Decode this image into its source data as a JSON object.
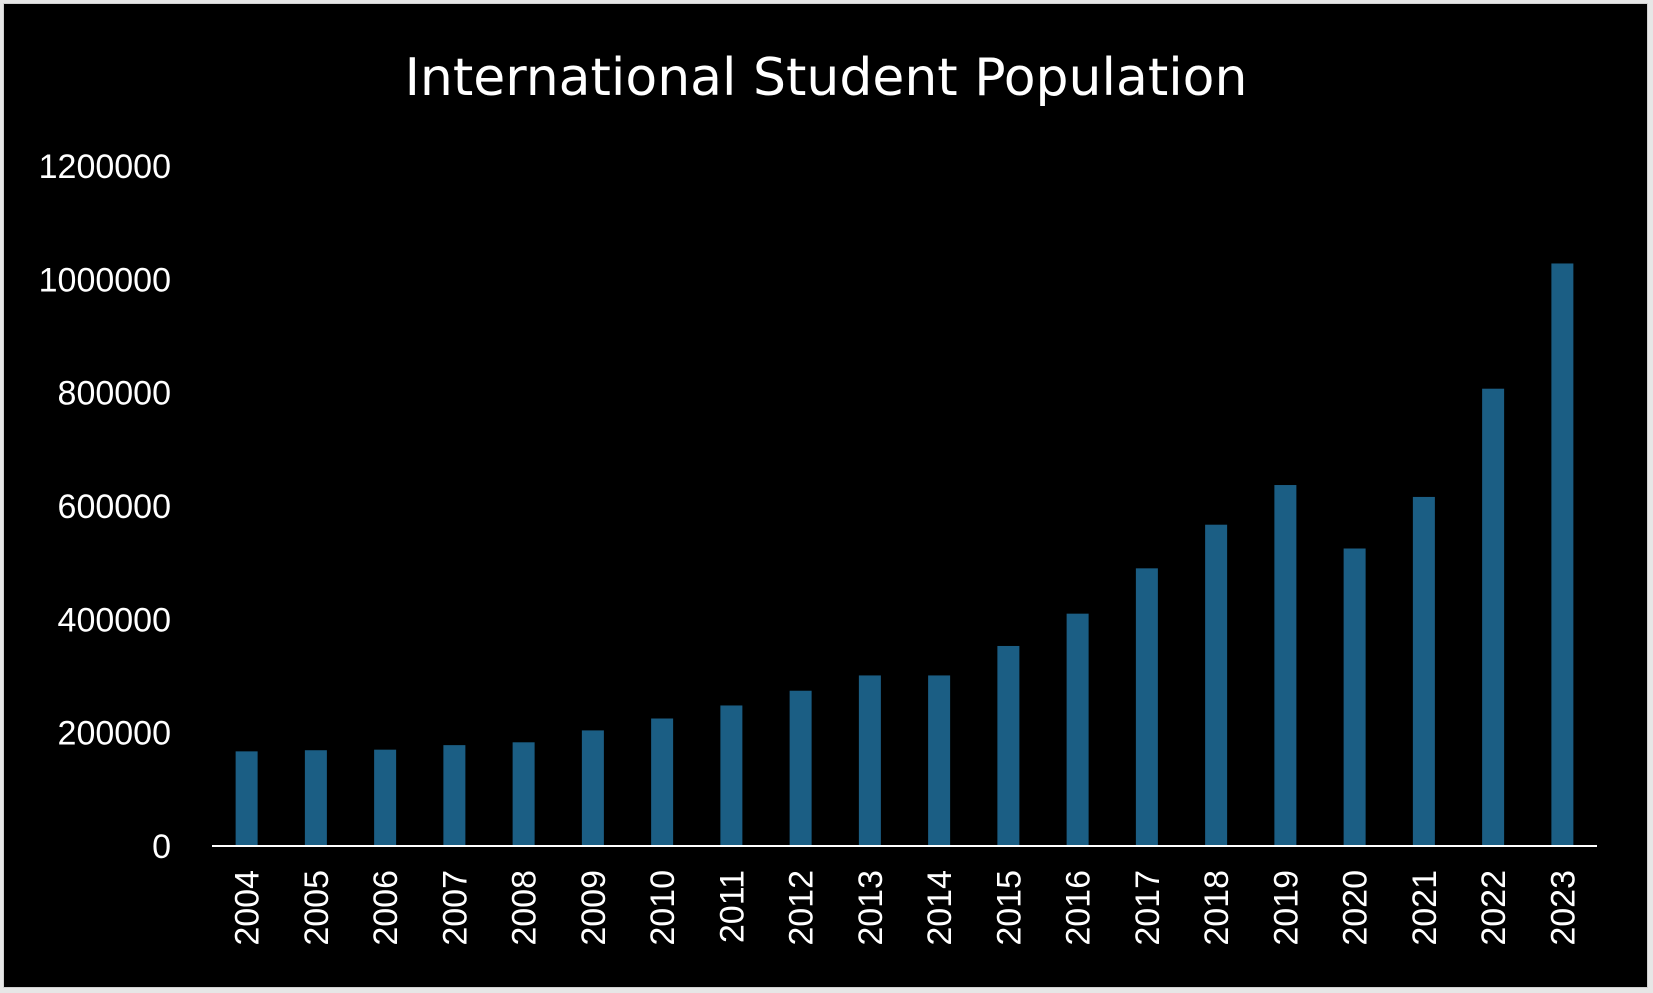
{
  "chart_data": {
    "type": "bar",
    "title": "International Student Population",
    "xlabel": "",
    "ylabel": "",
    "categories": [
      "2004",
      "2005",
      "2006",
      "2007",
      "2008",
      "2009",
      "2010",
      "2011",
      "2012",
      "2013",
      "2014",
      "2015",
      "2016",
      "2017",
      "2018",
      "2019",
      "2020",
      "2021",
      "2022",
      "2023"
    ],
    "values": [
      167000,
      169000,
      170000,
      178000,
      183000,
      204000,
      225000,
      248000,
      274000,
      301000,
      301000,
      353000,
      410000,
      490000,
      567000,
      637000,
      525000,
      616000,
      807000,
      1028000
    ],
    "ylim": [
      0,
      1200000
    ],
    "yticks": [
      "0",
      "200000",
      "400000",
      "600000",
      "800000",
      "1000000",
      "1200000"
    ],
    "grid": false,
    "legend": "none",
    "colors": {
      "background": "#000000",
      "bar": "#1b5e84",
      "text": "#ffffff",
      "axis": "#ffffff"
    }
  }
}
